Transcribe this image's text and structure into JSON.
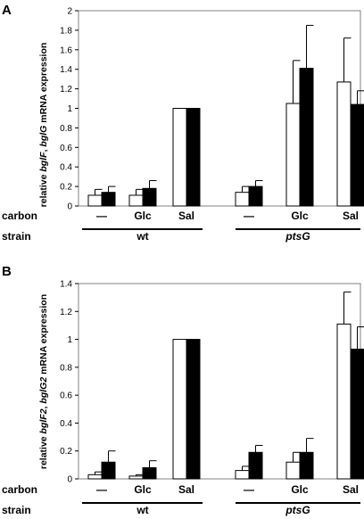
{
  "chart_data": [
    {
      "type": "bar",
      "panel_label": "A",
      "ylabel": {
        "pre": "relative ",
        "g1": "bglF",
        "mid": ", ",
        "g2": "bglG",
        "post": " mRNA expression"
      },
      "ylim": [
        0,
        2
      ],
      "yticks": [
        "0",
        "0.2",
        "0.4",
        "0.6",
        "0.8",
        "1",
        "1.2",
        "1.4",
        "1.6",
        "1.8",
        "2"
      ],
      "row_labels": {
        "carbon": "carbon",
        "strain": "strain"
      },
      "categories": [
        "—",
        "Glc",
        "Sal",
        "—",
        "Glc",
        "Sal"
      ],
      "strains": [
        "wt",
        "ptsG"
      ],
      "series": [
        {
          "color": "#ffffff",
          "values": [
            0.11,
            0.11,
            1.0,
            0.14,
            1.05,
            1.27
          ],
          "errors": [
            0.06,
            0.06,
            0,
            0.06,
            0.44,
            0.45
          ]
        },
        {
          "color": "#000000",
          "values": [
            0.14,
            0.18,
            1.0,
            0.2,
            1.41,
            1.04
          ],
          "errors": [
            0.06,
            0.08,
            0,
            0.06,
            0.44,
            0.14
          ]
        }
      ]
    },
    {
      "type": "bar",
      "panel_label": "B",
      "ylabel": {
        "pre": "relative ",
        "g1": "bglF2",
        "mid": ", ",
        "g2": "bglG2",
        "post": " mRNA expression"
      },
      "ylim": [
        0,
        1.4
      ],
      "yticks": [
        "0",
        "0.2",
        "0.4",
        "0.6",
        "0.8",
        "1",
        "1.2",
        "1.4"
      ],
      "row_labels": {
        "carbon": "carbon",
        "strain": "strain"
      },
      "categories": [
        "—",
        "Glc",
        "Sal",
        "—",
        "Glc",
        "Sal"
      ],
      "strains": [
        "wt",
        "ptsG"
      ],
      "series": [
        {
          "color": "#ffffff",
          "values": [
            0.03,
            0.02,
            1.0,
            0.06,
            0.12,
            1.11
          ],
          "errors": [
            0.02,
            0.01,
            0,
            0.03,
            0.07,
            0.23
          ]
        },
        {
          "color": "#000000",
          "values": [
            0.12,
            0.08,
            1.0,
            0.19,
            0.19,
            0.93
          ],
          "errors": [
            0.08,
            0.05,
            0,
            0.05,
            0.1,
            0.16
          ]
        }
      ]
    }
  ]
}
